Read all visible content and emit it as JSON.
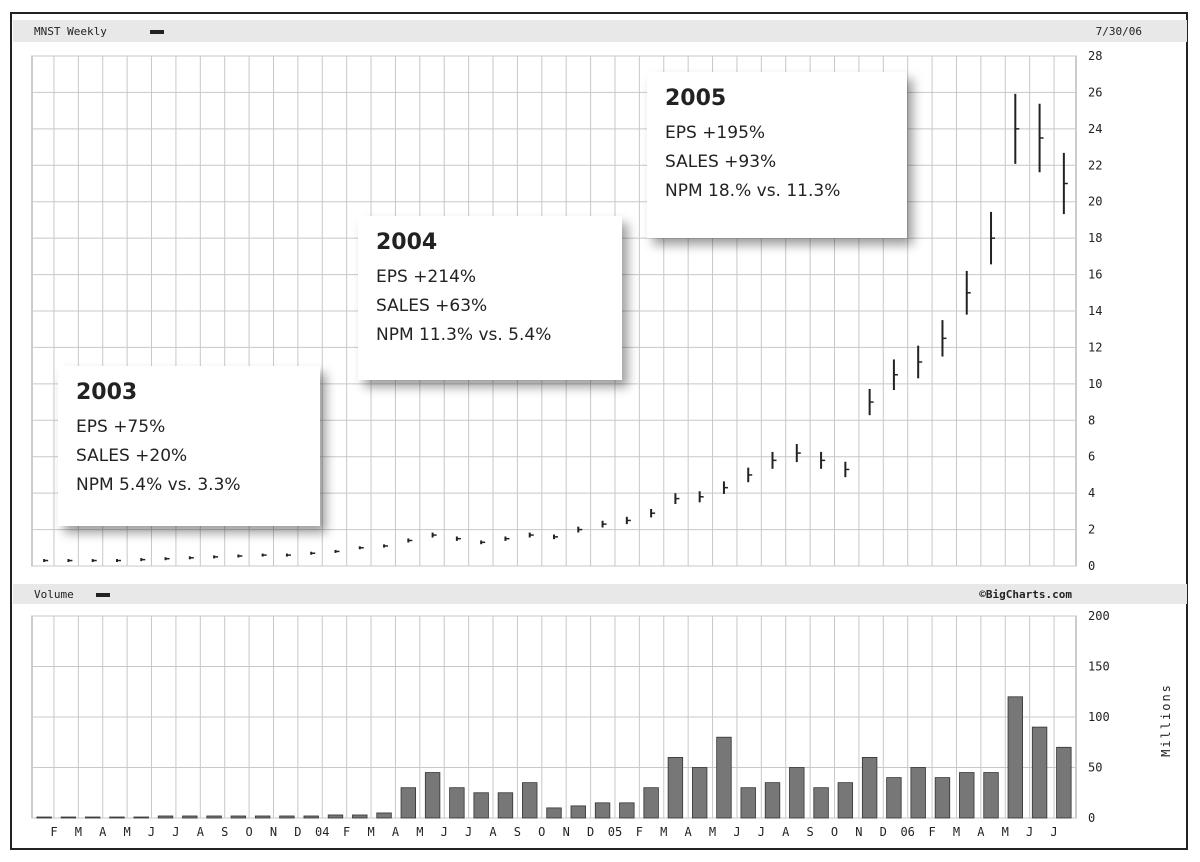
{
  "header": {
    "price_title": "MNST Weekly",
    "date": "7/30/06",
    "volume_title": "Volume",
    "credit": "©BigCharts.com",
    "volume_unit": "Millions"
  },
  "annotations": [
    {
      "year": "2003",
      "lines": [
        "EPS +75%",
        "SALES +20%",
        "NPM 5.4% vs. 3.3%"
      ]
    },
    {
      "year": "2004",
      "lines": [
        "EPS +214%",
        "SALES +63%",
        "NPM 11.3% vs. 5.4%"
      ]
    },
    {
      "year": "2005",
      "lines": [
        "EPS +195%",
        "SALES +93%",
        "NPM 18.% vs. 11.3%"
      ]
    }
  ],
  "chart_data": [
    {
      "type": "line",
      "title": "MNST Weekly",
      "ylabel": "",
      "ylim": [
        0,
        28
      ],
      "yticks": [
        0,
        2,
        4,
        6,
        8,
        10,
        12,
        14,
        16,
        18,
        20,
        22,
        24,
        26,
        28
      ],
      "x_tick_labels": [
        "F",
        "M",
        "A",
        "M",
        "J",
        "J",
        "A",
        "S",
        "O",
        "N",
        "D",
        "04",
        "F",
        "M",
        "A",
        "M",
        "J",
        "J",
        "A",
        "S",
        "O",
        "N",
        "D",
        "05",
        "F",
        "M",
        "A",
        "M",
        "J",
        "J",
        "A",
        "S",
        "O",
        "N",
        "D",
        "06",
        "F",
        "M",
        "A",
        "M",
        "J",
        "J"
      ],
      "x": [
        "2003-01",
        "2003-02",
        "2003-03",
        "2003-04",
        "2003-05",
        "2003-06",
        "2003-07",
        "2003-08",
        "2003-09",
        "2003-10",
        "2003-11",
        "2003-12",
        "2004-01",
        "2004-02",
        "2004-03",
        "2004-04",
        "2004-05",
        "2004-06",
        "2004-07",
        "2004-08",
        "2004-09",
        "2004-10",
        "2004-11",
        "2004-12",
        "2005-01",
        "2005-02",
        "2005-03",
        "2005-04",
        "2005-05",
        "2005-06",
        "2005-07",
        "2005-08",
        "2005-09",
        "2005-10",
        "2005-11",
        "2005-12",
        "2006-01",
        "2006-02",
        "2006-03",
        "2006-04",
        "2006-05",
        "2006-06",
        "2006-07"
      ],
      "series": [
        {
          "values": [
            0.3,
            0.3,
            0.3,
            0.3,
            0.35,
            0.4,
            0.45,
            0.5,
            0.55,
            0.6,
            0.6,
            0.7,
            0.8,
            1.0,
            1.1,
            1.4,
            1.7,
            1.5,
            1.3,
            1.5,
            1.7,
            1.6,
            2.0,
            2.3,
            2.5,
            2.9,
            3.7,
            3.8,
            4.3,
            5.0,
            5.8,
            6.2,
            5.8,
            5.3,
            9.0,
            10.5,
            11.2,
            12.5,
            15.0,
            18.0,
            24.0,
            23.5,
            21.0
          ]
        }
      ]
    },
    {
      "type": "bar",
      "title": "Volume",
      "ylabel": "Millions",
      "ylim": [
        0,
        200
      ],
      "yticks": [
        0,
        50,
        100,
        150,
        200
      ],
      "x": [
        "2003-01",
        "2003-02",
        "2003-03",
        "2003-04",
        "2003-05",
        "2003-06",
        "2003-07",
        "2003-08",
        "2003-09",
        "2003-10",
        "2003-11",
        "2003-12",
        "2004-01",
        "2004-02",
        "2004-03",
        "2004-04",
        "2004-05",
        "2004-06",
        "2004-07",
        "2004-08",
        "2004-09",
        "2004-10",
        "2004-11",
        "2004-12",
        "2005-01",
        "2005-02",
        "2005-03",
        "2005-04",
        "2005-05",
        "2005-06",
        "2005-07",
        "2005-08",
        "2005-09",
        "2005-10",
        "2005-11",
        "2005-12",
        "2006-01",
        "2006-02",
        "2006-03",
        "2006-04",
        "2006-05",
        "2006-06",
        "2006-07"
      ],
      "series": [
        {
          "values": [
            1,
            1,
            1,
            1,
            1,
            2,
            2,
            2,
            2,
            2,
            2,
            2,
            3,
            3,
            5,
            30,
            45,
            30,
            25,
            25,
            35,
            10,
            12,
            15,
            15,
            30,
            60,
            50,
            80,
            30,
            35,
            50,
            30,
            35,
            60,
            40,
            50,
            40,
            45,
            45,
            120,
            90,
            70
          ]
        }
      ]
    }
  ]
}
